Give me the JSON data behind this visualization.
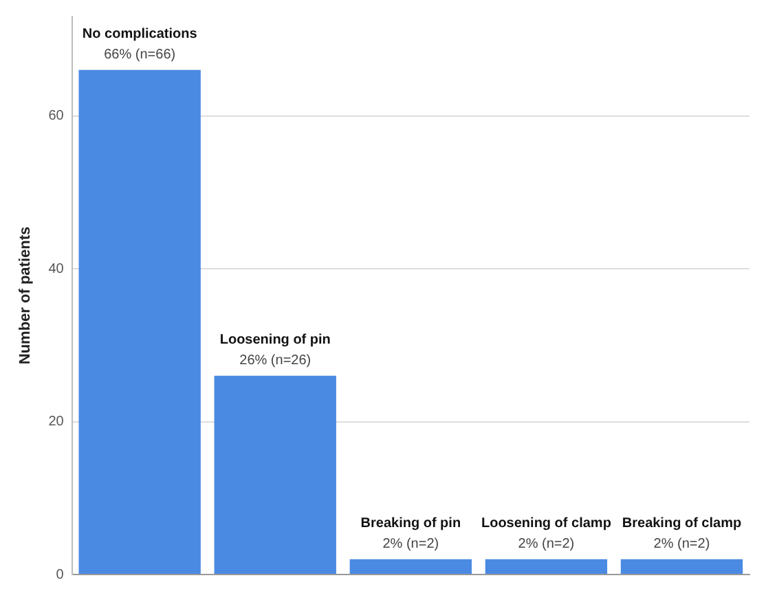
{
  "chart_data": {
    "type": "bar",
    "ylabel": "Number of patients",
    "categories": [
      "No complications",
      "Loosening of pin",
      "Breaking of pin",
      "Loosening of clamp",
      "Breaking of clamp"
    ],
    "values": [
      66,
      26,
      2,
      2,
      2
    ],
    "value_labels": [
      "66% (n=66)",
      "26% (n=26)",
      "2% (n=2)",
      "2% (n=2)",
      "2% (n=2)"
    ],
    "color": "#4a8ae2",
    "ylim": [
      0,
      73
    ],
    "yticks": [
      0,
      20,
      40,
      60
    ],
    "grid": "y",
    "legend": false,
    "tick_labels": "y"
  }
}
